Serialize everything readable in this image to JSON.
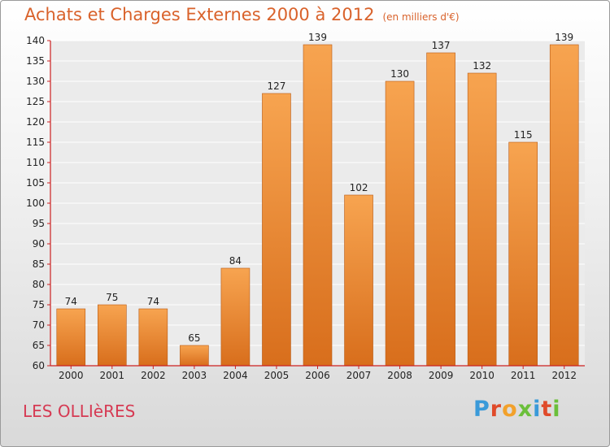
{
  "header": {
    "title": "Achats et Charges Externes 2000 à 2012",
    "unit": "(en milliers d'€)"
  },
  "footer": {
    "place": "LES OLLIèRES",
    "logo_letters": [
      "P",
      "r",
      "o",
      "x",
      "i",
      "t",
      "i"
    ]
  },
  "colors": {
    "bar_light": "#f7a450",
    "bar_dark": "#d86e1c",
    "title": "#d9622b",
    "place": "#d63a53",
    "axis": "#cc2020",
    "logo": [
      "#3a9ad9",
      "#e04a2a",
      "#f2a12b",
      "#6bbf3a",
      "#3a9ad9",
      "#e04a2a",
      "#6bbf3a"
    ]
  },
  "chart_data": {
    "type": "bar",
    "categories": [
      "2000",
      "2001",
      "2002",
      "2003",
      "2004",
      "2005",
      "2006",
      "2007",
      "2008",
      "2009",
      "2010",
      "2011",
      "2012"
    ],
    "values": [
      74,
      75,
      74,
      65,
      84,
      127,
      139,
      102,
      130,
      137,
      132,
      115,
      139
    ],
    "ylim": [
      60,
      140
    ],
    "yticks": [
      60,
      65,
      70,
      75,
      80,
      85,
      90,
      95,
      100,
      105,
      110,
      115,
      120,
      125,
      130,
      135,
      140
    ],
    "grid": true,
    "legend": "none"
  }
}
